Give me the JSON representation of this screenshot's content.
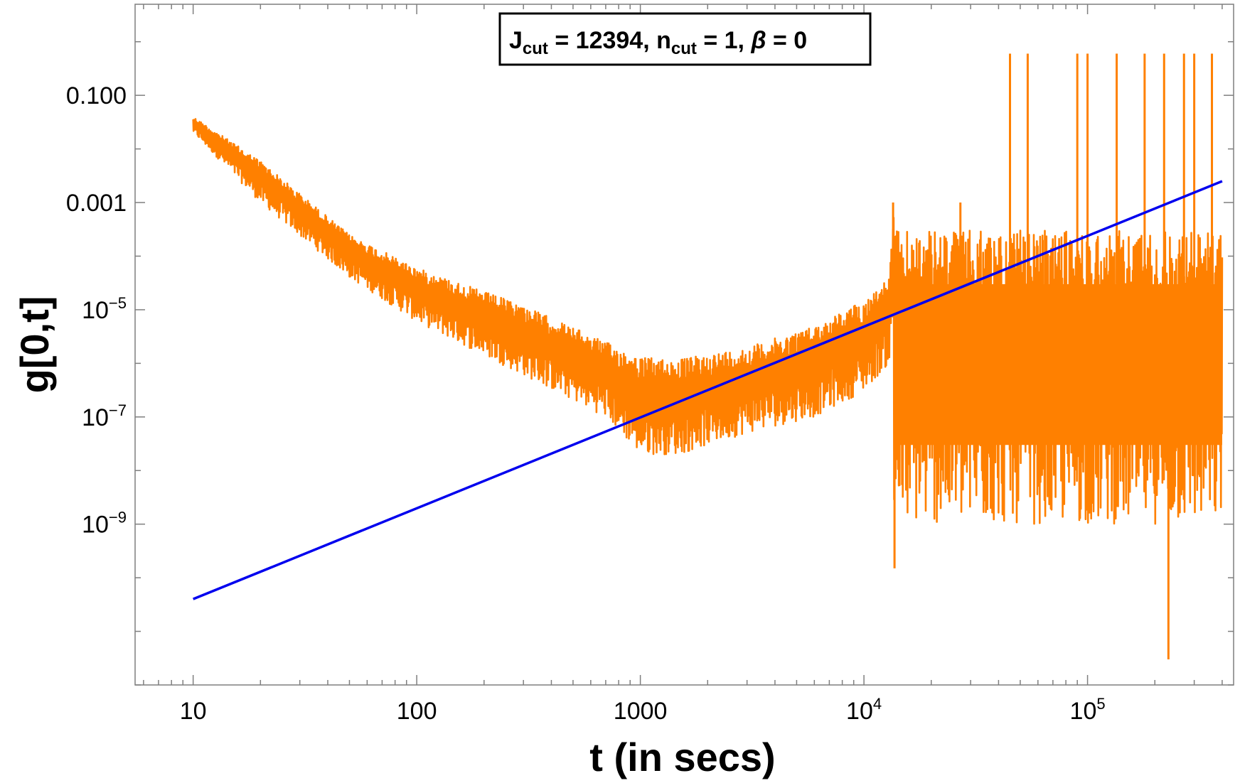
{
  "chart_data": {
    "type": "line",
    "title": "",
    "xlabel": "t (in secs)",
    "ylabel": "g[0,t]",
    "x_scale": "log",
    "y_scale": "log",
    "xlim": [
      5.5,
      450000
    ],
    "ylim": [
      1e-12,
      5
    ],
    "grid": false,
    "annotation": {
      "parts": [
        "J",
        "cut",
        " = 12394, n",
        "cut",
        " = 1, ",
        "β",
        " = 0"
      ],
      "placement": "top-center"
    },
    "x_ticks": [
      {
        "value": 10,
        "label": "10"
      },
      {
        "value": 100,
        "label": "100"
      },
      {
        "value": 1000,
        "label": "1000"
      },
      {
        "value": 10000,
        "base": "10",
        "exp": "4"
      },
      {
        "value": 100000,
        "base": "10",
        "exp": "5"
      }
    ],
    "y_ticks": [
      {
        "value": 0.1,
        "label": "0.100"
      },
      {
        "value": 0.001,
        "label": "0.001"
      },
      {
        "value": 1e-05,
        "base": "10",
        "exp": "−5"
      },
      {
        "value": 1e-07,
        "base": "10",
        "exp": "−7"
      },
      {
        "value": 1e-09,
        "base": "10",
        "exp": "−9"
      }
    ],
    "series": [
      {
        "color": "#ff8000",
        "envelope_upper": [
          [
            10,
            0.04
          ],
          [
            20,
            0.006
          ],
          [
            50,
            0.00025
          ],
          [
            100,
            6e-05
          ],
          [
            300,
            1.2e-05
          ],
          [
            700,
            2.5e-06
          ],
          [
            1000,
            1.3e-06
          ],
          [
            1500,
            1.2e-06
          ],
          [
            3000,
            2e-06
          ],
          [
            6000,
            5e-06
          ],
          [
            10000,
            1.5e-05
          ],
          [
            13000,
            4e-05
          ],
          [
            13500,
            0.0008
          ]
        ],
        "envelope_lower": [
          [
            10,
            0.02
          ],
          [
            20,
            0.001
          ],
          [
            50,
            4e-05
          ],
          [
            100,
            6e-06
          ],
          [
            300,
            6e-07
          ],
          [
            700,
            1e-07
          ],
          [
            1000,
            2e-08
          ],
          [
            1500,
            2e-08
          ],
          [
            3000,
            5e-08
          ],
          [
            6000,
            1e-07
          ],
          [
            10000,
            3e-07
          ],
          [
            13000,
            1e-06
          ],
          [
            13500,
            3e-06
          ]
        ],
        "late_band": {
          "x_from": 13600,
          "x_to": 400000,
          "upper": 0.0003,
          "lower": 1e-09
        },
        "spikes": [
          {
            "x": 13500,
            "y": 0.001
          },
          {
            "x": 13700,
            "y": 1.5e-10
          },
          {
            "x": 27000,
            "y": 0.001
          },
          {
            "x": 45000,
            "y": 0.6
          },
          {
            "x": 54000,
            "y": 0.6
          },
          {
            "x": 63000,
            "y": 0.0002
          },
          {
            "x": 90000,
            "y": 0.6
          },
          {
            "x": 100000,
            "y": 0.6
          },
          {
            "x": 135000,
            "y": 0.6
          },
          {
            "x": 180000,
            "y": 0.6
          },
          {
            "x": 220000,
            "y": 0.6
          },
          {
            "x": 270000,
            "y": 0.6
          },
          {
            "x": 300000,
            "y": 0.6
          },
          {
            "x": 360000,
            "y": 0.6
          },
          {
            "x": 230000,
            "y": 3e-12
          }
        ]
      },
      {
        "color": "#0000ee",
        "x": [
          10,
          400000
        ],
        "y": [
          4e-11,
          0.0025
        ]
      }
    ]
  }
}
